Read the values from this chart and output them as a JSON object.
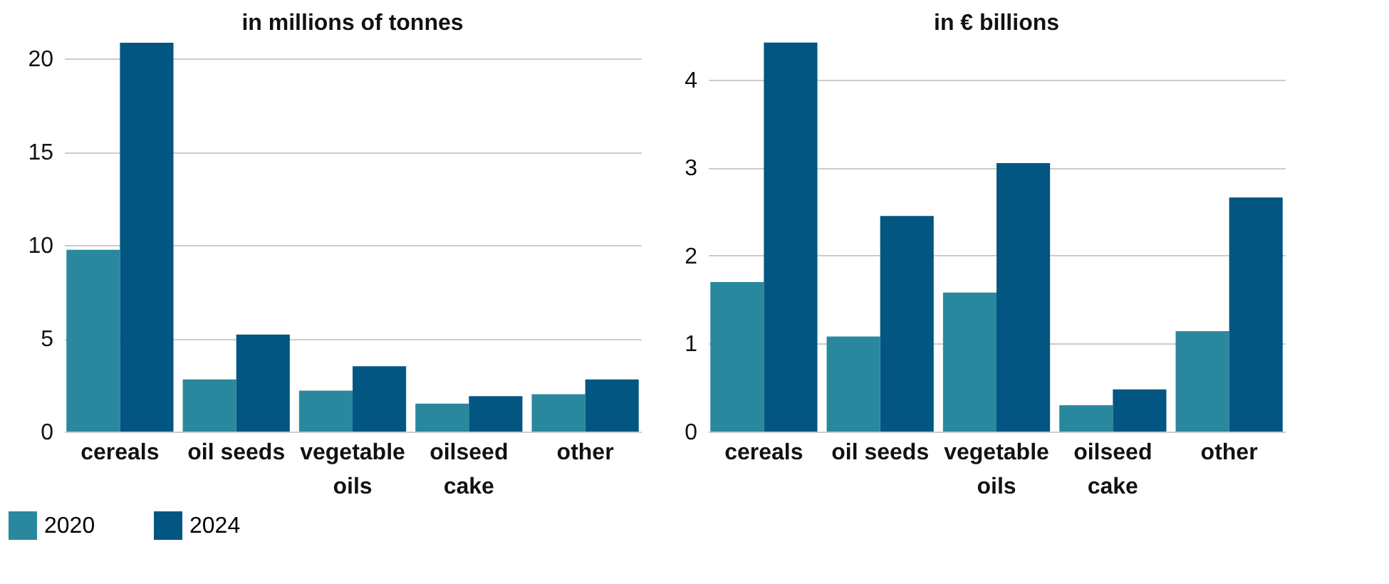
{
  "chart_data": [
    {
      "type": "bar",
      "title": "in millions of tonnes",
      "categories": [
        "cereals",
        "oil seeds",
        "vegetable oils",
        "oilseed cake",
        "other"
      ],
      "series": [
        {
          "name": "2020",
          "color": "#2a889e",
          "values": [
            9.75,
            2.8,
            2.2,
            1.5,
            2.0
          ]
        },
        {
          "name": "2024",
          "color": "#035682",
          "values": [
            20.85,
            5.2,
            3.5,
            1.9,
            2.8
          ]
        }
      ],
      "ylim": [
        0,
        21
      ],
      "yticks": [
        0,
        5,
        10,
        15,
        20
      ],
      "grid": "y",
      "legend": "bottom left"
    },
    {
      "type": "bar",
      "title": "in € billions",
      "categories": [
        "cereals",
        "oil seeds",
        "vegetable oils",
        "oilseed cake",
        "other"
      ],
      "series": [
        {
          "name": "2020",
          "color": "#2a889e",
          "values": [
            1.7,
            1.08,
            1.58,
            0.3,
            1.14
          ]
        },
        {
          "name": "2024",
          "color": "#035682",
          "values": [
            4.42,
            2.45,
            3.05,
            0.48,
            2.66
          ]
        }
      ],
      "ylim": [
        0,
        4.45
      ],
      "yticks": [
        0,
        1,
        2,
        3,
        4
      ],
      "grid": "y",
      "legend": "bottom left"
    }
  ]
}
